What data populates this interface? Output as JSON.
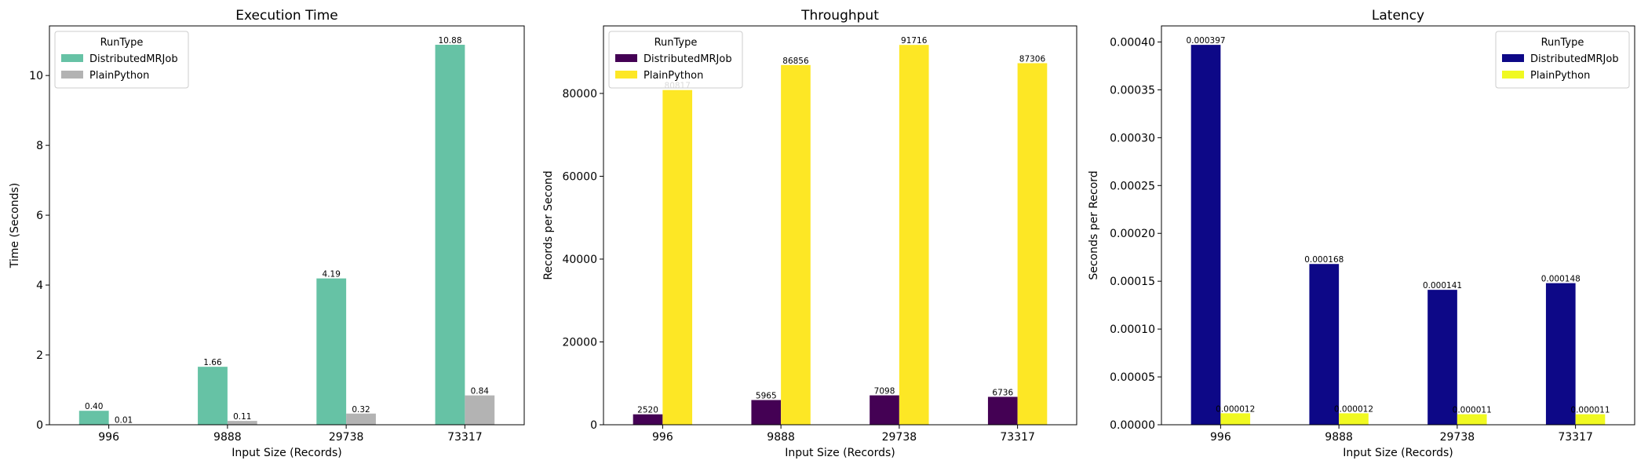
{
  "chart_data": [
    {
      "type": "bar",
      "title": "Execution Time",
      "xlabel": "Input Size (Records)",
      "ylabel": "Time (Seconds)",
      "categories": [
        "996",
        "9888",
        "29738",
        "73317"
      ],
      "ylim": [
        0,
        11.42
      ],
      "yticks": [
        0,
        2,
        4,
        6,
        8,
        10
      ],
      "ytick_labels": [
        "0",
        "2",
        "4",
        "6",
        "8",
        "10"
      ],
      "legend": {
        "title": "RunType",
        "position": "top-left"
      },
      "series": [
        {
          "name": "DistributedMRJob",
          "color": "#66c2a5",
          "values": [
            0.4,
            1.66,
            4.19,
            10.88
          ],
          "labels": [
            "0.40",
            "1.66",
            "4.19",
            "10.88"
          ]
        },
        {
          "name": "PlainPython",
          "color": "#b3b3b3",
          "values": [
            0.01,
            0.11,
            0.32,
            0.84
          ],
          "labels": [
            "0.01",
            "0.11",
            "0.32",
            "0.84"
          ]
        }
      ]
    },
    {
      "type": "bar",
      "title": "Throughput",
      "xlabel": "Input Size (Records)",
      "ylabel": "Records per Second",
      "categories": [
        "996",
        "9888",
        "29738",
        "73317"
      ],
      "ylim": [
        0,
        96302
      ],
      "yticks": [
        0,
        20000,
        40000,
        60000,
        80000
      ],
      "ytick_labels": [
        "0",
        "20000",
        "40000",
        "60000",
        "80000"
      ],
      "legend": {
        "title": "RunType",
        "position": "top-left"
      },
      "series": [
        {
          "name": "DistributedMRJob",
          "color": "#440154",
          "values": [
            2520,
            5965,
            7098,
            6736
          ],
          "labels": [
            "2520",
            "5965",
            "7098",
            "6736"
          ]
        },
        {
          "name": "PlainPython",
          "color": "#fde725",
          "values": [
            80817,
            86856,
            91716,
            87306
          ],
          "labels": [
            "80817",
            "86856",
            "91716",
            "87306"
          ]
        }
      ]
    },
    {
      "type": "bar",
      "title": "Latency",
      "xlabel": "Input Size (Records)",
      "ylabel": "Seconds per Record",
      "categories": [
        "996",
        "9888",
        "29738",
        "73317"
      ],
      "ylim": [
        0,
        0.0004168
      ],
      "yticks": [
        0,
        5e-05,
        0.0001,
        0.00015,
        0.0002,
        0.00025,
        0.0003,
        0.00035,
        0.0004
      ],
      "ytick_labels": [
        "0.00000",
        "0.00005",
        "0.00010",
        "0.00015",
        "0.00020",
        "0.00025",
        "0.00030",
        "0.00035",
        "0.00040"
      ],
      "legend": {
        "title": "RunType",
        "position": "top-right"
      },
      "series": [
        {
          "name": "DistributedMRJob",
          "color": "#0d0887",
          "values": [
            0.000397,
            0.000168,
            0.000141,
            0.000148
          ],
          "labels": [
            "0.000397",
            "0.000168",
            "0.000141",
            "0.000148"
          ]
        },
        {
          "name": "PlainPython",
          "color": "#f0f921",
          "values": [
            1.2e-05,
            1.2e-05,
            1.1e-05,
            1.1e-05
          ],
          "labels": [
            "0.000012",
            "0.000012",
            "0.000011",
            "0.000011"
          ]
        }
      ]
    }
  ]
}
